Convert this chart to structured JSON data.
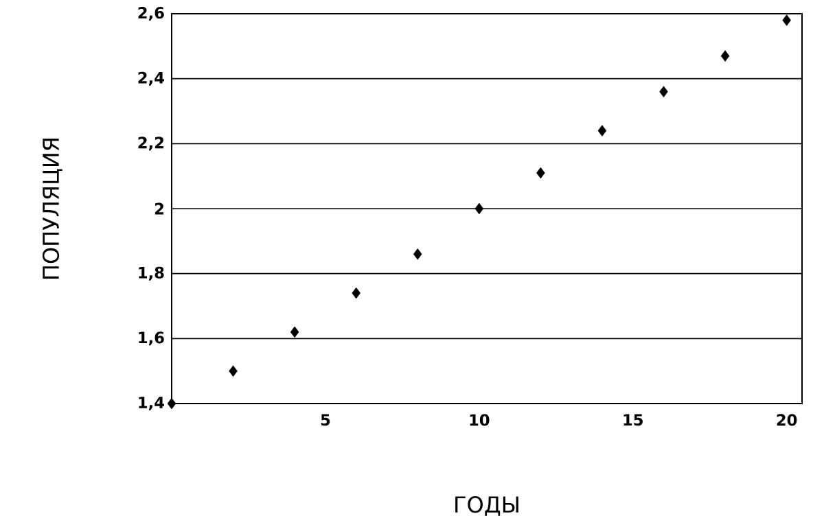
{
  "chart_data": {
    "type": "scatter",
    "xlabel": "ГОДЫ",
    "ylabel": "ПОПУЛЯЦИЯ",
    "x": [
      0,
      2,
      4,
      6,
      8,
      10,
      12,
      14,
      16,
      18,
      20
    ],
    "series": [
      {
        "color": "#000000",
        "values": [
          1.4,
          1.5,
          1.62,
          1.74,
          1.86,
          2.0,
          2.11,
          2.24,
          2.36,
          2.47,
          2.58
        ]
      }
    ],
    "xlim": [
      0,
      20.5
    ],
    "xticks": [
      5,
      10,
      15,
      20
    ],
    "ylim": [
      1.4,
      2.6
    ],
    "yticks": [
      {
        "value": 1.4,
        "label": "1,4"
      },
      {
        "value": 1.6,
        "label": "1,6"
      },
      {
        "value": 1.8,
        "label": "1,8"
      },
      2,
      {
        "value": 2.2,
        "label": "2,2"
      },
      {
        "value": 2.4,
        "label": "2,4"
      },
      {
        "value": 2.6,
        "label": "2,6"
      }
    ],
    "grid": "y",
    "marker": "diamond"
  }
}
